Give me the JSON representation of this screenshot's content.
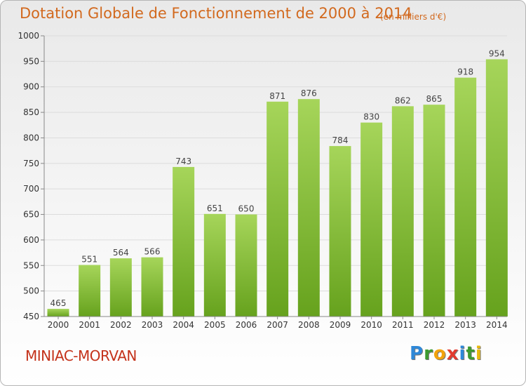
{
  "header": {
    "title": "Dotation Globale de Fonctionnement de 2000 à 2014",
    "subtitle": "(en milliers d'€)"
  },
  "footer": {
    "commune": "MINIAC-MORVAN",
    "logo_letters": [
      "P",
      "r",
      "o",
      "x",
      "i",
      "t",
      "i"
    ],
    "logo_colors": [
      "#2e88d8",
      "#3d9a2f",
      "#f2a20c",
      "#e23b2e",
      "#2e88d8",
      "#3d9a2f",
      "#e8b80c"
    ]
  },
  "colors": {
    "bar_light": "#a6d55a",
    "bar_dark": "#66a21d",
    "title": "#d2691e",
    "commune": "#c4321a"
  },
  "chart_data": {
    "type": "bar",
    "title": "Dotation Globale de Fonctionnement de 2000 à 2014",
    "subtitle": "(en milliers d'€)",
    "categories": [
      "2000",
      "2001",
      "2002",
      "2003",
      "2004",
      "2005",
      "2006",
      "2007",
      "2008",
      "2009",
      "2010",
      "2011",
      "2012",
      "2013",
      "2014"
    ],
    "values": [
      465,
      551,
      564,
      566,
      743,
      651,
      650,
      871,
      876,
      784,
      830,
      862,
      865,
      918,
      954
    ],
    "ylim": [
      450,
      1000
    ],
    "yticks": [
      450,
      500,
      550,
      600,
      650,
      700,
      750,
      800,
      850,
      900,
      950,
      1000
    ],
    "grid": true,
    "xlabel": "",
    "ylabel": ""
  }
}
